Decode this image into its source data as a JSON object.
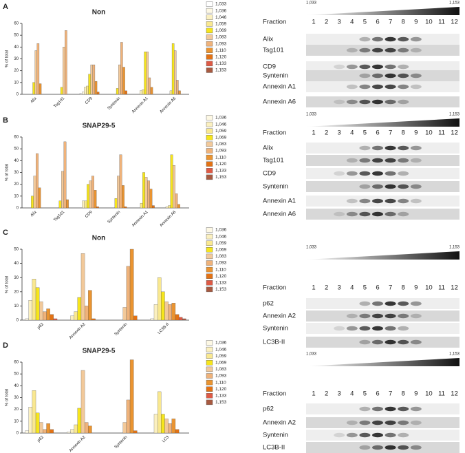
{
  "chart_data": [
    {
      "type": "bar",
      "panel": "A",
      "title": "Non",
      "y_label": "% of total",
      "categories": [
        "Alix",
        "Tsg101",
        "CD9",
        "Syntenin",
        "Annexin A1",
        "Annexin A6"
      ],
      "ylim": [
        0,
        60
      ],
      "yticks": [
        0,
        10,
        20,
        30,
        40,
        50,
        60
      ],
      "series": [
        {
          "name": "1,033",
          "color": "#ffffff",
          "values": [
            0,
            0,
            1,
            0,
            0,
            0
          ]
        },
        {
          "name": "1,036",
          "color": "#fdf8e4",
          "values": [
            0,
            0,
            2,
            0,
            0,
            0
          ]
        },
        {
          "name": "1,046",
          "color": "#fbf0c0",
          "values": [
            0,
            0,
            6,
            0,
            3,
            0
          ]
        },
        {
          "name": "1,059",
          "color": "#f9e890",
          "values": [
            0,
            0,
            7,
            0,
            4,
            3
          ]
        },
        {
          "name": "1,069",
          "color": "#f6e51c",
          "values": [
            10,
            6,
            17,
            5,
            36,
            43
          ]
        },
        {
          "name": "1,083",
          "color": "#f2c99a",
          "values": [
            37,
            40,
            25,
            25,
            36,
            37
          ]
        },
        {
          "name": "1,093",
          "color": "#efb27a",
          "values": [
            43,
            54,
            25,
            44,
            14,
            12
          ]
        },
        {
          "name": "1,110",
          "color": "#ea9431",
          "values": [
            9,
            0,
            11,
            23,
            6,
            3
          ]
        },
        {
          "name": "1,120",
          "color": "#e37214",
          "values": [
            0,
            0,
            2,
            3,
            0,
            0
          ]
        },
        {
          "name": "1,133",
          "color": "#de5a45",
          "values": [
            0,
            0,
            0,
            0,
            0,
            0
          ]
        },
        {
          "name": "1,153",
          "color": "#a85a40",
          "values": [
            0,
            0,
            0,
            0,
            0,
            0
          ]
        }
      ]
    },
    {
      "type": "bar",
      "panel": "B",
      "title": "SNAP29-5",
      "y_label": "% of total",
      "categories": [
        "Alix",
        "Tsg101",
        "CD9",
        "Syntenin",
        "Annexin A1",
        "Annexin A6"
      ],
      "ylim": [
        0,
        60
      ],
      "yticks": [
        0,
        10,
        20,
        30,
        40,
        50,
        60
      ],
      "series": [
        {
          "name": "1,036",
          "color": "#fdf8e4",
          "values": [
            0,
            0,
            0,
            0,
            0,
            0
          ]
        },
        {
          "name": "1,046",
          "color": "#fbf0c0",
          "values": [
            0,
            0,
            6,
            0,
            0,
            1
          ]
        },
        {
          "name": "1,059",
          "color": "#f9e890",
          "values": [
            0,
            0,
            6,
            0,
            4,
            2
          ]
        },
        {
          "name": "1,069",
          "color": "#f6e51c",
          "values": [
            10,
            6,
            20,
            8,
            30,
            45
          ]
        },
        {
          "name": "1,083",
          "color": "#f2c99a",
          "values": [
            27,
            31,
            23,
            27,
            26,
            36
          ]
        },
        {
          "name": "1,093",
          "color": "#efb27a",
          "values": [
            46,
            56,
            27,
            45,
            23,
            12
          ]
        },
        {
          "name": "1,110",
          "color": "#ea9431",
          "values": [
            17,
            7,
            15,
            19,
            16,
            3
          ]
        },
        {
          "name": "1,120",
          "color": "#e37214",
          "values": [
            0,
            0,
            1,
            1,
            2,
            0
          ]
        },
        {
          "name": "1,133",
          "color": "#de5a45",
          "values": [
            0,
            0,
            0,
            0,
            0,
            0
          ]
        },
        {
          "name": "1,153",
          "color": "#a85a40",
          "values": [
            0,
            0,
            0,
            0,
            0,
            0
          ]
        }
      ]
    },
    {
      "type": "bar",
      "panel": "C",
      "title": "Non",
      "y_label": "% of total",
      "categories": [
        "p62",
        "Annexin A2",
        "Syntenin",
        "LC3B-II"
      ],
      "ylim": [
        0,
        50
      ],
      "yticks": [
        0,
        10,
        20,
        30,
        40,
        50
      ],
      "series": [
        {
          "name": "1,036",
          "color": "#fdf8e4",
          "values": [
            1,
            0,
            0,
            1
          ]
        },
        {
          "name": "1,046",
          "color": "#fbf0c0",
          "values": [
            14,
            3,
            0,
            11
          ]
        },
        {
          "name": "1,059",
          "color": "#f9e890",
          "values": [
            29,
            6,
            0,
            30
          ]
        },
        {
          "name": "1,069",
          "color": "#f6e51c",
          "values": [
            23,
            16,
            0,
            20
          ]
        },
        {
          "name": "1,083",
          "color": "#f2c99a",
          "values": [
            13,
            47,
            9,
            13
          ]
        },
        {
          "name": "1,093",
          "color": "#efb27a",
          "values": [
            6,
            10,
            38,
            11
          ]
        },
        {
          "name": "1,110",
          "color": "#ea9431",
          "values": [
            8,
            21,
            50,
            12
          ]
        },
        {
          "name": "1,120",
          "color": "#e37214",
          "values": [
            4,
            1,
            3,
            4
          ]
        },
        {
          "name": "1,133",
          "color": "#de5a45",
          "values": [
            1,
            0,
            0,
            2
          ]
        },
        {
          "name": "1,153",
          "color": "#a85a40",
          "values": [
            0,
            0,
            0,
            1
          ]
        }
      ]
    },
    {
      "type": "bar",
      "panel": "D",
      "title": "SNAP29-5",
      "y_label": "% of total",
      "categories": [
        "p62",
        "Annexin A2",
        "Syntenin",
        "LC3"
      ],
      "ylim": [
        0,
        60
      ],
      "yticks": [
        0,
        10,
        20,
        30,
        40,
        50,
        60
      ],
      "series": [
        {
          "name": "1,036",
          "color": "#fdf8e4",
          "values": [
            2,
            1,
            0,
            0
          ]
        },
        {
          "name": "1,046",
          "color": "#fbf0c0",
          "values": [
            22,
            3,
            0,
            16
          ]
        },
        {
          "name": "1,059",
          "color": "#f9e890",
          "values": [
            36,
            7,
            0,
            35
          ]
        },
        {
          "name": "1,069",
          "color": "#f6e51c",
          "values": [
            17,
            21,
            0,
            16
          ]
        },
        {
          "name": "1,083",
          "color": "#f2c99a",
          "values": [
            9,
            53,
            9,
            12
          ]
        },
        {
          "name": "1,093",
          "color": "#efb27a",
          "values": [
            3,
            9,
            28,
            8
          ]
        },
        {
          "name": "1,110",
          "color": "#ea9431",
          "values": [
            8,
            6,
            62,
            12
          ]
        },
        {
          "name": "1,120",
          "color": "#e37214",
          "values": [
            3,
            0,
            2,
            3
          ]
        },
        {
          "name": "1,133",
          "color": "#de5a45",
          "values": [
            0,
            0,
            0,
            0
          ]
        },
        {
          "name": "1,153",
          "color": "#a85a40",
          "values": [
            0,
            0,
            0,
            0
          ]
        }
      ]
    }
  ],
  "blots": [
    {
      "gradient_labels": [
        "1,033",
        "1,153"
      ],
      "fraction_label": "Fraction",
      "fractions": [
        "1",
        "2",
        "3",
        "4",
        "5",
        "6",
        "7",
        "8",
        "9",
        "10",
        "11",
        "12"
      ],
      "rows": [
        "Alix",
        "Tsg101",
        "CD9",
        "Syntenin",
        "Annexin A1",
        "Annexin A6"
      ]
    },
    {
      "gradient_labels": [
        "1,033",
        "1,153"
      ],
      "fraction_label": "Fraction",
      "fractions": [
        "1",
        "2",
        "3",
        "4",
        "5",
        "6",
        "7",
        "8",
        "9",
        "10",
        "11",
        "12"
      ],
      "rows": [
        "Alix",
        "Tsg101",
        "CD9",
        "Syntenin",
        "Annexin A1",
        "Annexin A6"
      ]
    },
    {
      "gradient_labels": [
        "1,033",
        "1,153"
      ],
      "fraction_label": "Fraction",
      "fractions": [
        "1",
        "2",
        "3",
        "4",
        "5",
        "6",
        "7",
        "8",
        "9",
        "10",
        "11",
        "12"
      ],
      "rows": [
        "p62",
        "Annexin A2",
        "Syntenin",
        "LC3B-II"
      ]
    },
    {
      "gradient_labels": [
        "1,033",
        "1,153"
      ],
      "fraction_label": "Fraction",
      "fractions": [
        "1",
        "2",
        "3",
        "4",
        "5",
        "6",
        "7",
        "8",
        "9",
        "10",
        "11",
        "12"
      ],
      "rows": [
        "p62",
        "Annexin A2",
        "Syntenin",
        "LC3B-II"
      ]
    }
  ]
}
